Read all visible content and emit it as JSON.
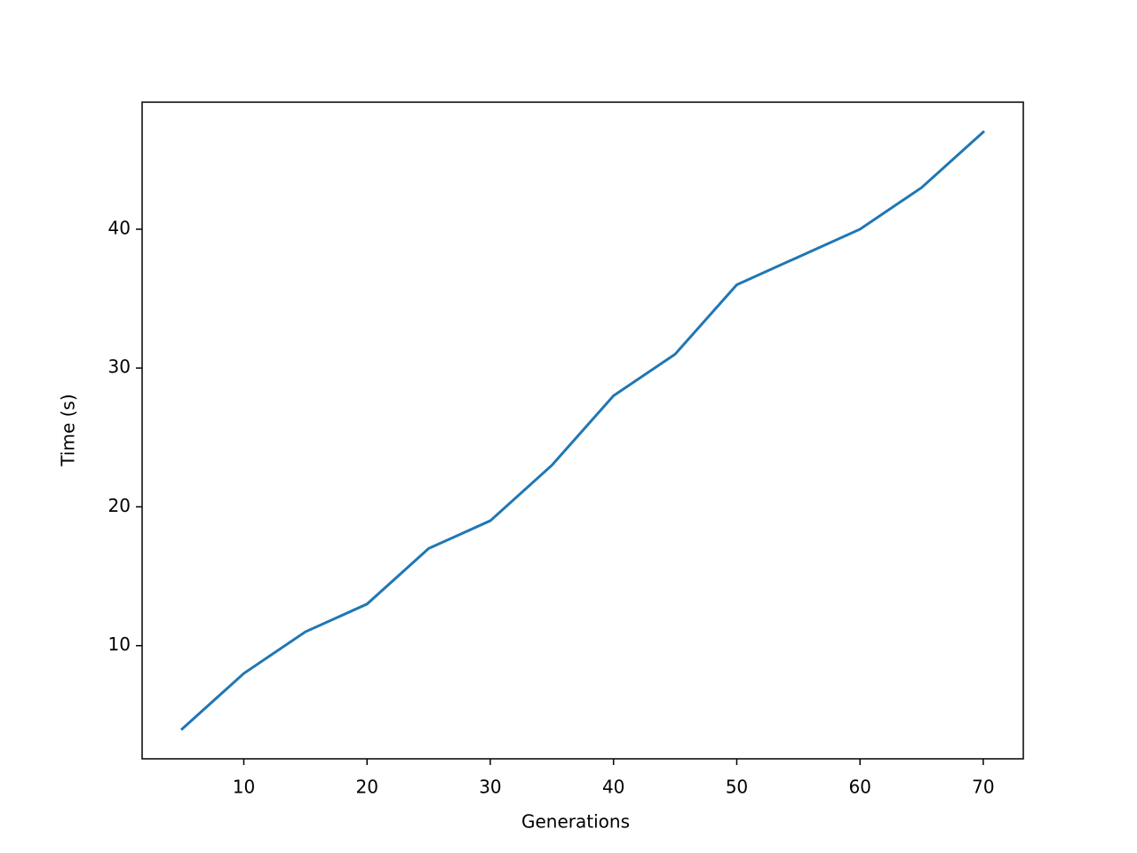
{
  "chart_data": {
    "type": "line",
    "x_label": "Generations",
    "y_label": "Time (s)",
    "x": [
      5,
      10,
      15,
      20,
      25,
      30,
      35,
      40,
      45,
      50,
      55,
      60,
      65,
      70
    ],
    "series": [
      {
        "color": "#1f77b4",
        "values": [
          4,
          8,
          11,
          13,
          17,
          19,
          23,
          28,
          31,
          36,
          38,
          40,
          43,
          47
        ]
      }
    ],
    "xlim": [
      1.75,
      73.25
    ],
    "ylim": [
      1.85,
      49.15
    ],
    "xticks": [
      10,
      20,
      30,
      40,
      50,
      60,
      70
    ],
    "yticks": [
      10,
      20,
      30,
      40
    ]
  }
}
